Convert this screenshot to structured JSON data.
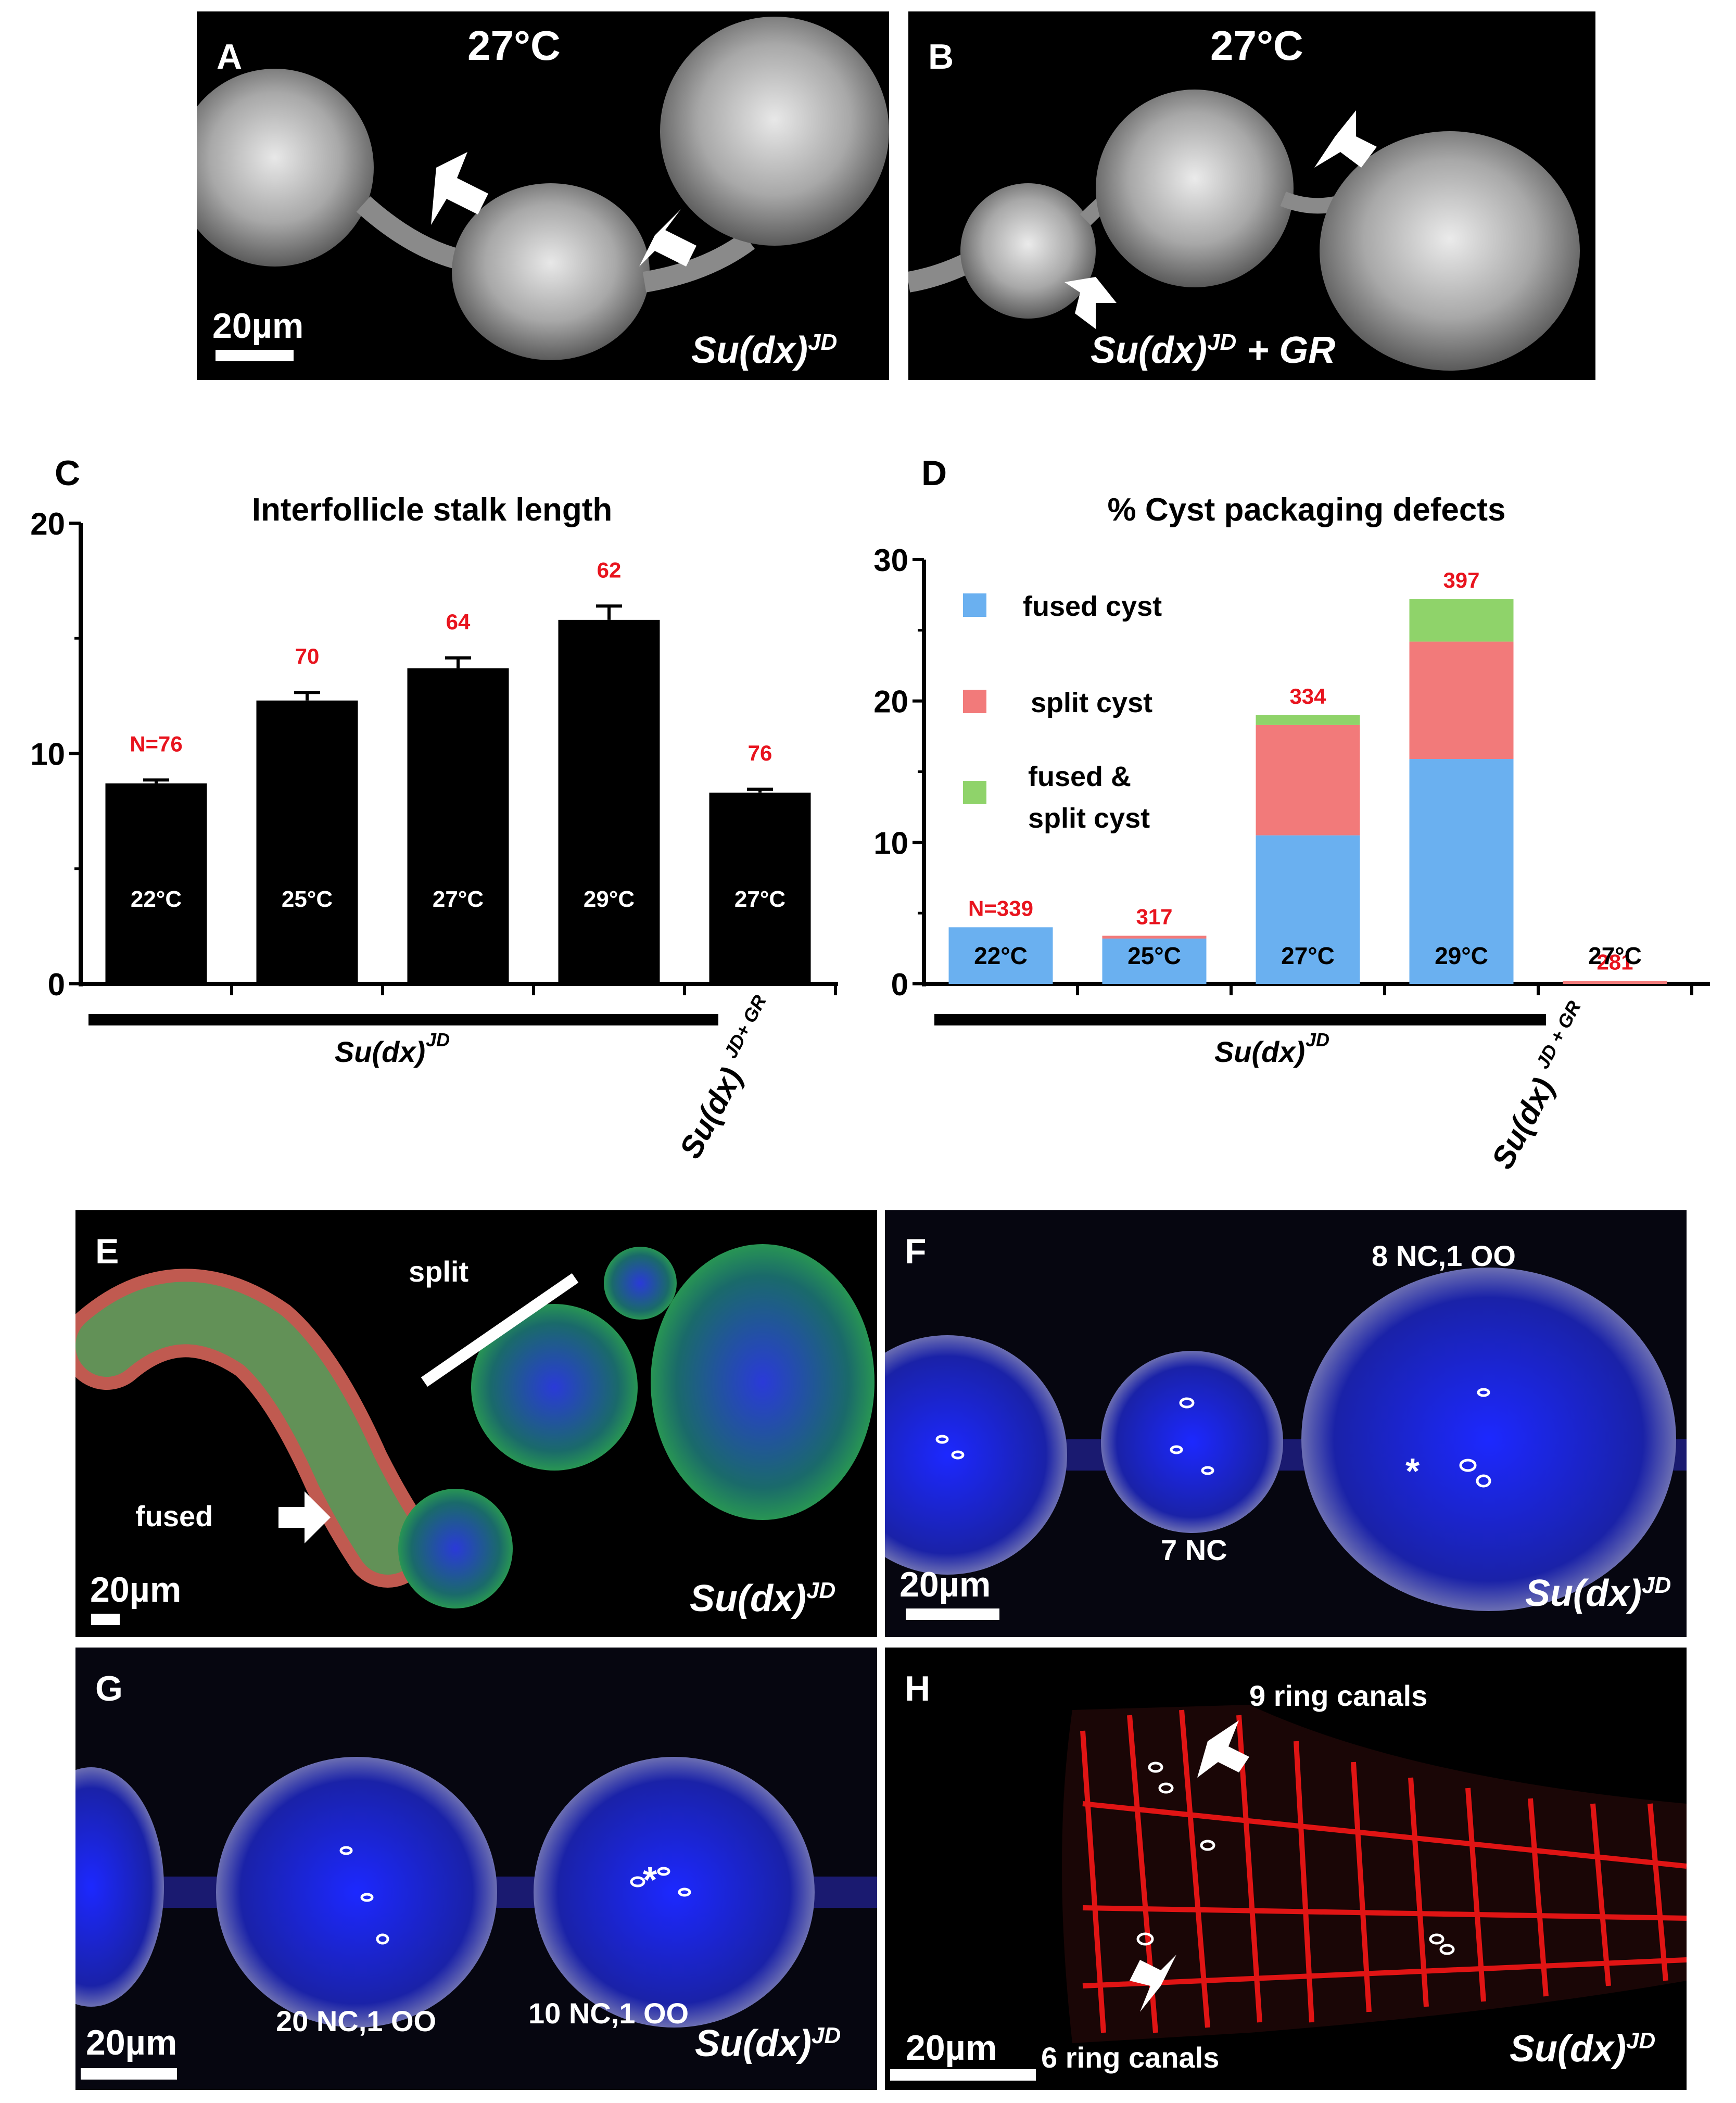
{
  "panels": {
    "A": {
      "label": "A",
      "temp": "27°C",
      "scale": "20µm",
      "genotype": "Su(dx)",
      "genotype_sup": "JD"
    },
    "B": {
      "label": "B",
      "temp": "27°C",
      "genotype": "Su(dx)",
      "genotype_sup": "JD",
      "genotype_suffix": " + GR"
    },
    "E": {
      "label": "E",
      "split": "split",
      "fused": "fused",
      "scale": "20µm",
      "genotype": "Su(dx)",
      "genotype_sup": "JD"
    },
    "F": {
      "label": "F",
      "top_note": "8 NC,1 OO",
      "mid_note": "7 NC",
      "scale": "20µm",
      "genotype": "Su(dx)",
      "genotype_sup": "JD"
    },
    "G": {
      "label": "G",
      "note1": "20 NC,1 OO",
      "note2": "10 NC,1 OO",
      "scale": "20µm",
      "genotype": "Su(dx)",
      "genotype_sup": "JD"
    },
    "H": {
      "label": "H",
      "note_top": "9 ring canals",
      "note_bottom": "6 ring canals",
      "scale": "20µm",
      "genotype": "Su(dx)",
      "genotype_sup": "JD"
    }
  },
  "colors": {
    "fused": "#6ab0f0",
    "split": "#f27a7a",
    "fused_split": "#8fd36a",
    "n_label": "#e8141e",
    "bar": "#000000"
  },
  "chart_data": [
    {
      "panel": "C",
      "type": "bar",
      "title": "Interfollicle stalk length",
      "categories": [
        "22°C",
        "25°C",
        "27°C",
        "29°C",
        "27°C"
      ],
      "values": [
        8.7,
        12.3,
        13.7,
        15.8,
        8.3
      ],
      "errors": [
        0.15,
        0.35,
        0.45,
        0.6,
        0.15
      ],
      "n_labels": [
        "N=76",
        "70",
        "64",
        "62",
        "76"
      ],
      "ylim": [
        0,
        20
      ],
      "yticks": [
        "0",
        "10",
        "20"
      ],
      "group_labels": [
        "Su(dx)",
        "JD",
        "Su(dx)",
        "JD+ GR"
      ]
    },
    {
      "panel": "D",
      "type": "bar",
      "stacked": true,
      "title": "% Cyst packaging defects",
      "categories": [
        "22°C",
        "25°C",
        "27°C",
        "29°C",
        "27°C"
      ],
      "series": [
        {
          "name": "fused cyst",
          "values": [
            4.0,
            3.2,
            10.5,
            15.9,
            0.0
          ]
        },
        {
          "name": "split cyst",
          "values": [
            0.0,
            0.2,
            7.8,
            8.3,
            0.2
          ]
        },
        {
          "name": "fused & split cyst",
          "values": [
            0.0,
            0.0,
            0.7,
            3.0,
            0.0
          ]
        }
      ],
      "n_labels": [
        "N=339",
        "317",
        "334",
        "397",
        "281"
      ],
      "ylim": [
        0,
        30
      ],
      "yticks": [
        "0",
        "10",
        "20",
        "30"
      ],
      "legend": [
        "fused cyst",
        "split cyst",
        "fused &",
        "split cyst"
      ],
      "group_labels": [
        "Su(dx)",
        "JD",
        "Su(dx)",
        "JD + GR"
      ]
    }
  ]
}
